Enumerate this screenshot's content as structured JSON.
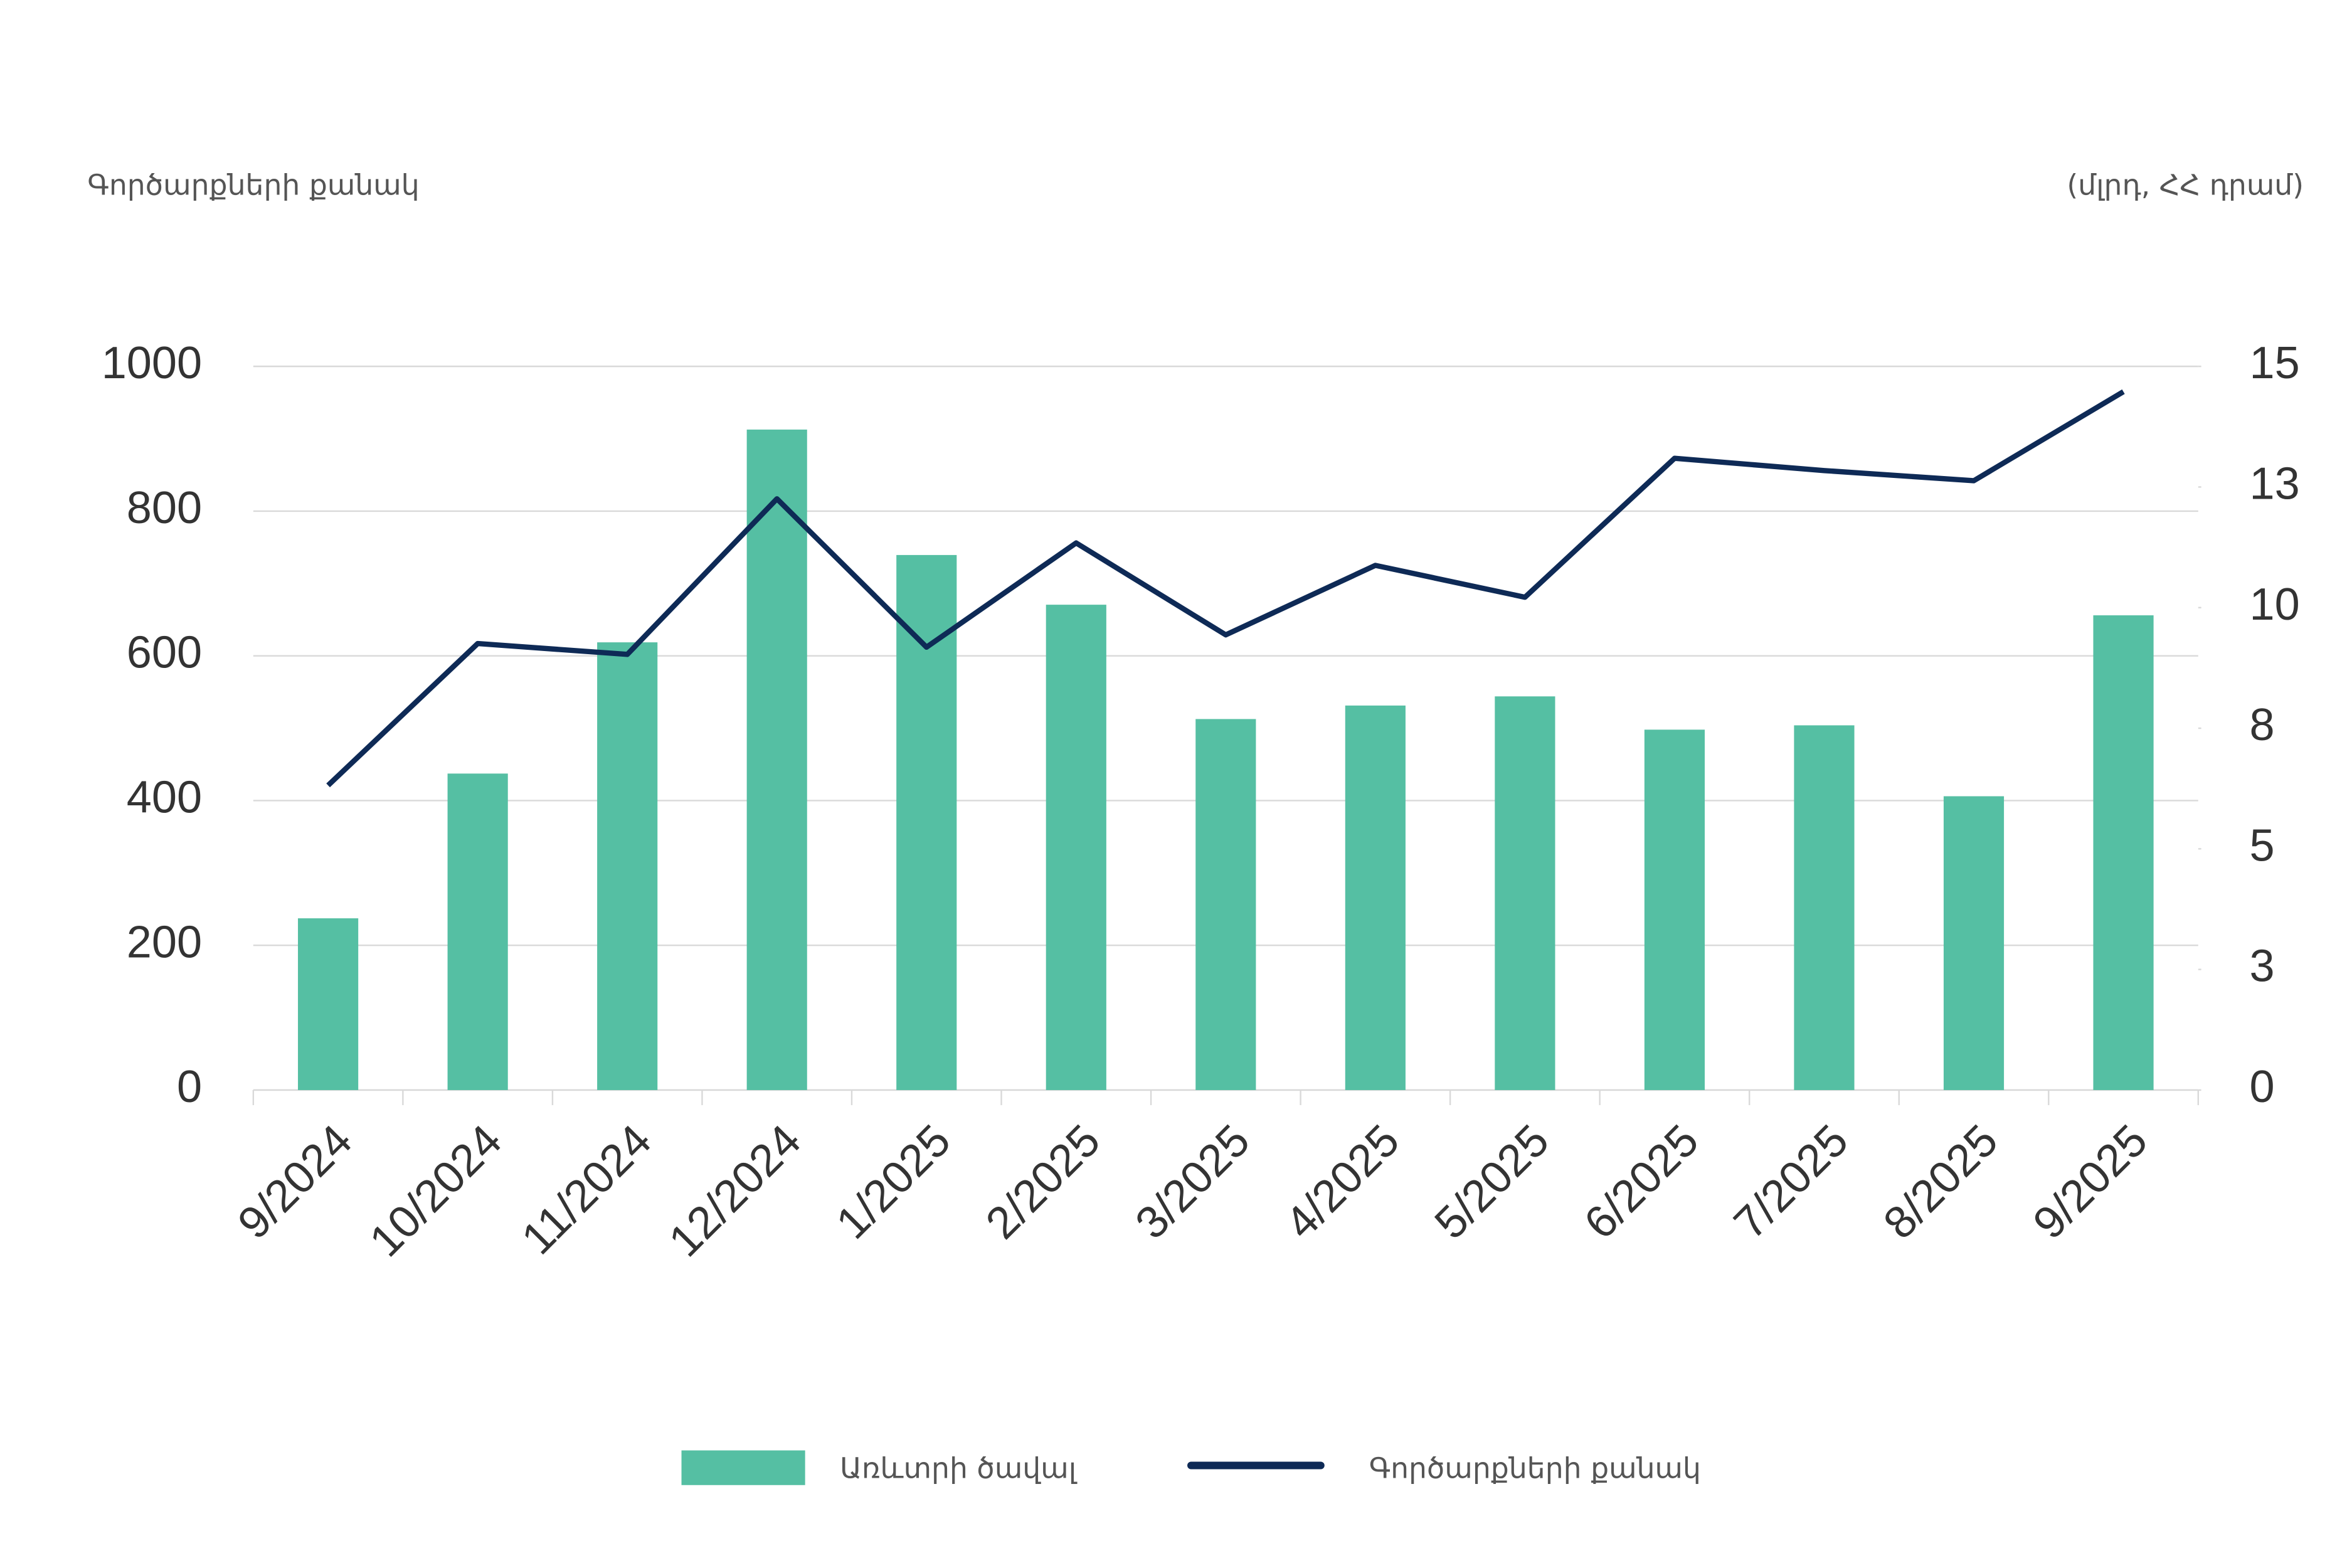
{
  "chart_data": {
    "type": "bar-line",
    "y_title": "Գործարքների քանակ",
    "y2_title": "(մլրդ, ՀՀ դրամ)",
    "categories": [
      "9/2024",
      "10/2024",
      "11/2024",
      "12/2024",
      "1/2025",
      "2/2025",
      "3/2025",
      "4/2025",
      "5/2025",
      "6/2025",
      "7/2025",
      "8/2025",
      "9/2025"
    ],
    "series": [
      {
        "name": "Առևտրի ծավալ",
        "type": "bar",
        "axis": "y2",
        "color": "#55bfa3",
        "values": [
          3.56,
          6.56,
          9.28,
          13.69,
          11.09,
          10.06,
          7.69,
          7.97,
          8.16,
          7.47,
          7.56,
          6.09,
          9.84
        ]
      },
      {
        "name": "Գործարքների քանակ",
        "type": "line",
        "axis": "y",
        "color": "#0e2a56",
        "values": [
          421,
          617,
          602,
          817,
          612,
          756,
          629,
          725,
          681,
          873,
          856,
          842,
          965
        ]
      }
    ],
    "ylim": [
      0,
      1000
    ],
    "yticks": [
      0,
      200,
      400,
      600,
      800,
      1000
    ],
    "y2lim": [
      0,
      15
    ],
    "y2ticks": [
      0,
      {
        "value": 2.5,
        "label": "3"
      },
      5,
      {
        "value": 7.5,
        "label": "8"
      },
      10,
      {
        "value": 12.5,
        "label": "13"
      },
      15
    ],
    "grid": true,
    "legend": "bottom"
  }
}
